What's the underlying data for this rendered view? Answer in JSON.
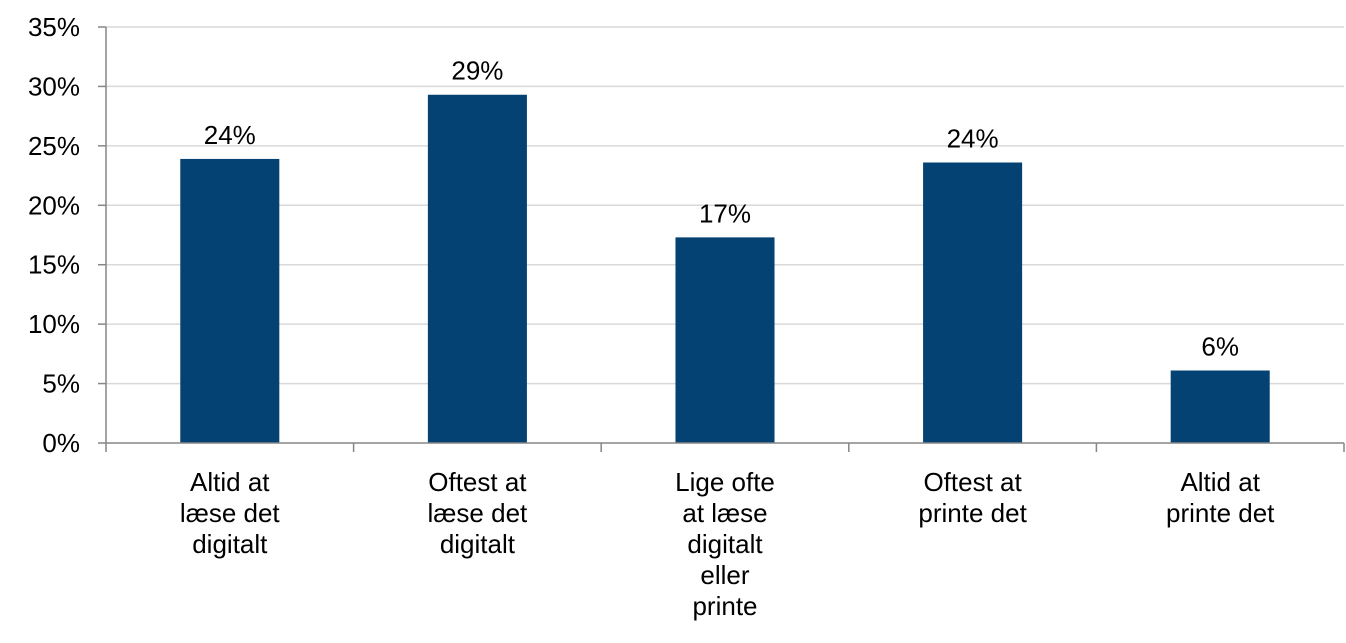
{
  "chart_data": {
    "type": "bar",
    "title": "",
    "xlabel": "",
    "ylabel": "",
    "categories": [
      [
        "Altid at",
        "læse det",
        "digitalt"
      ],
      [
        "Oftest at",
        "læse det",
        "digitalt"
      ],
      [
        "Lige ofte",
        "at læse",
        "digitalt",
        "eller",
        "printe"
      ],
      [
        "Oftest at",
        "printe det"
      ],
      [
        "Altid at",
        "printe det"
      ]
    ],
    "values": [
      24,
      29,
      17,
      24,
      6
    ],
    "plotted_values": [
      23.9,
      29.3,
      17.3,
      23.6,
      6.1
    ],
    "data_labels": [
      "24%",
      "29%",
      "17%",
      "24%",
      "6%"
    ],
    "ylim": [
      0,
      35
    ],
    "yticks": [
      0,
      5,
      10,
      15,
      20,
      25,
      30,
      35
    ],
    "ytick_labels": [
      "0%",
      "5%",
      "10%",
      "15%",
      "20%",
      "25%",
      "30%",
      "35%"
    ],
    "grid": true,
    "legend": "none",
    "colors": {
      "bar": "#044274",
      "grid": "#d9d9d9",
      "axis": "#868686"
    }
  }
}
